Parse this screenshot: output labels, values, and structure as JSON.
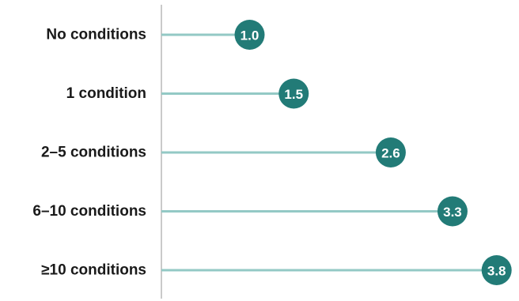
{
  "chart_data": {
    "type": "bar",
    "subtype": "lollipop",
    "orientation": "horizontal",
    "categories": [
      "No conditions",
      "1 condition",
      "2–5 conditions",
      "6–10 conditions",
      "≥10 conditions"
    ],
    "values": [
      1.0,
      1.5,
      2.6,
      3.3,
      3.8
    ],
    "value_labels": [
      "1.0",
      "1.5",
      "2.6",
      "3.3",
      "3.8"
    ],
    "title": "",
    "xlabel": "",
    "ylabel": "",
    "xlim": [
      0,
      3.8
    ],
    "grid": false,
    "legend": "none"
  },
  "colors": {
    "stem": "#93c9c5",
    "marker": "#227b77",
    "axis": "#a6a6a6",
    "label_text": "#1a1a1a",
    "value_text": "#ffffff"
  }
}
